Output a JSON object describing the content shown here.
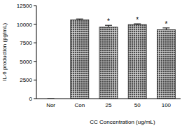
{
  "chart_data": {
    "type": "bar",
    "y_label": "IL-6 production (pg/mL)",
    "x_label": "CC Concentration (ug/mL)",
    "categories": [
      "Nor",
      "Con",
      "25",
      "50",
      "100"
    ],
    "values": [
      0,
      10600,
      9600,
      9950,
      9250
    ],
    "errors": [
      0,
      100,
      250,
      100,
      250
    ],
    "significance_labels": [
      null,
      null,
      "*",
      "*",
      "*"
    ],
    "color": "#4d4d4d",
    "ylim": [
      0,
      12500
    ],
    "yticks": [
      0,
      2500,
      5000,
      7500,
      10000,
      12500
    ],
    "grid": false
  }
}
